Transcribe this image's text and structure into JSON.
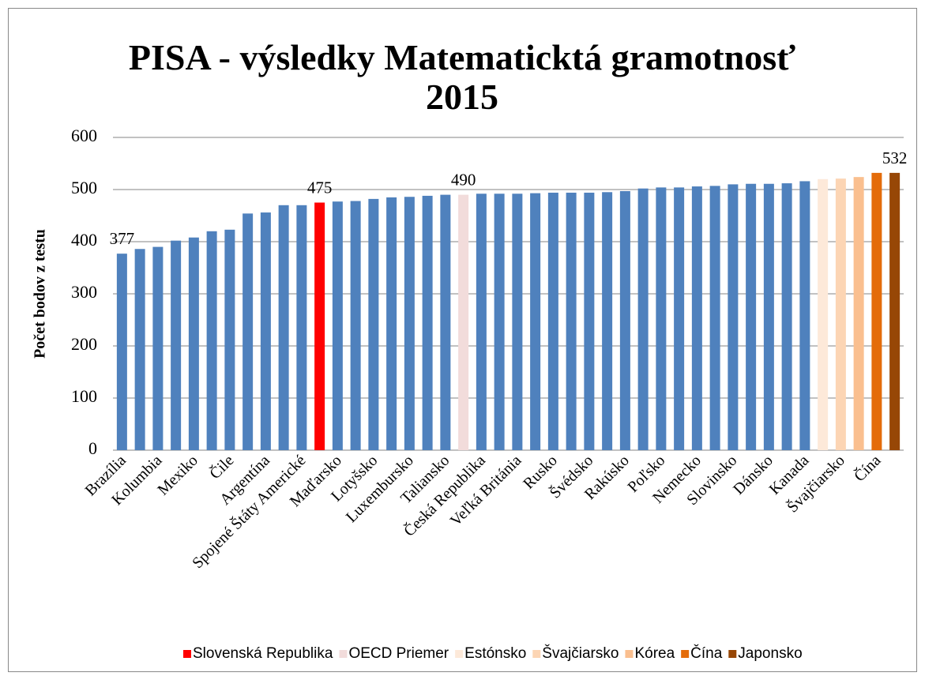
{
  "chart_data": {
    "type": "bar",
    "title": "PISA - výsledky Matematicktá gramotnosť 2015",
    "y_label": "Počet bodov z testu",
    "categories": [
      "Brazília",
      null,
      "Kolumbia",
      null,
      "Mexiko",
      null,
      "Čile",
      null,
      "Argentína",
      null,
      "Spojené Štáty Americké",
      null,
      "Maďarsko",
      null,
      "Lotyšsko",
      null,
      "Luxembursko",
      null,
      "Taliansko",
      null,
      "Česká Republika",
      null,
      "Veľká Británia",
      null,
      "Rusko",
      null,
      "Švédsko",
      null,
      "Rakúsko",
      null,
      "Poľsko",
      null,
      "Nemecko",
      null,
      "Slovinsko",
      null,
      "Dánsko",
      null,
      "Kanada",
      null,
      "Švajčiarsko",
      null,
      "Čína",
      null
    ],
    "values": [
      377,
      386,
      390,
      402,
      408,
      420,
      423,
      454,
      456,
      470,
      470,
      475,
      477,
      478,
      482,
      485,
      486,
      488,
      490,
      490,
      492,
      492,
      492,
      493,
      494,
      494,
      494,
      495,
      497,
      502,
      504,
      504,
      506,
      507,
      510,
      511,
      511,
      512,
      516,
      520,
      521,
      524,
      532,
      532
    ],
    "value_labels": [
      "377",
      null,
      null,
      null,
      null,
      null,
      null,
      null,
      null,
      null,
      null,
      "475",
      null,
      null,
      null,
      null,
      null,
      null,
      null,
      "490",
      null,
      null,
      null,
      null,
      null,
      null,
      null,
      null,
      null,
      null,
      null,
      null,
      null,
      null,
      null,
      null,
      null,
      null,
      null,
      null,
      null,
      null,
      null,
      "532"
    ],
    "colors": [
      "#4f81bd",
      "#4f81bd",
      "#4f81bd",
      "#4f81bd",
      "#4f81bd",
      "#4f81bd",
      "#4f81bd",
      "#4f81bd",
      "#4f81bd",
      "#4f81bd",
      "#4f81bd",
      "#ff0000",
      "#4f81bd",
      "#4f81bd",
      "#4f81bd",
      "#4f81bd",
      "#4f81bd",
      "#4f81bd",
      "#4f81bd",
      "#f2dcdb",
      "#4f81bd",
      "#4f81bd",
      "#4f81bd",
      "#4f81bd",
      "#4f81bd",
      "#4f81bd",
      "#4f81bd",
      "#4f81bd",
      "#4f81bd",
      "#4f81bd",
      "#4f81bd",
      "#4f81bd",
      "#4f81bd",
      "#4f81bd",
      "#4f81bd",
      "#4f81bd",
      "#4f81bd",
      "#4f81bd",
      "#4f81bd",
      "#fde9d9",
      "#fcd5b4",
      "#fabf8f",
      "#e46c0a",
      "#974706"
    ],
    "legend": [
      {
        "name": "Slovenská Republika",
        "color": "#ff0000"
      },
      {
        "name": "OECD Priemer",
        "color": "#f2dcdb"
      },
      {
        "name": "Estónsko",
        "color": "#fde9d9"
      },
      {
        "name": "Švajčiarsko",
        "color": "#fcd5b4"
      },
      {
        "name": "Kórea",
        "color": "#fabf8f"
      },
      {
        "name": "Čína",
        "color": "#e46c0a"
      },
      {
        "name": "Japonsko",
        "color": "#974706"
      }
    ],
    "ylim": [
      0,
      600
    ],
    "yticks": [
      0,
      100,
      200,
      300,
      400,
      500,
      600
    ],
    "grid": true
  }
}
